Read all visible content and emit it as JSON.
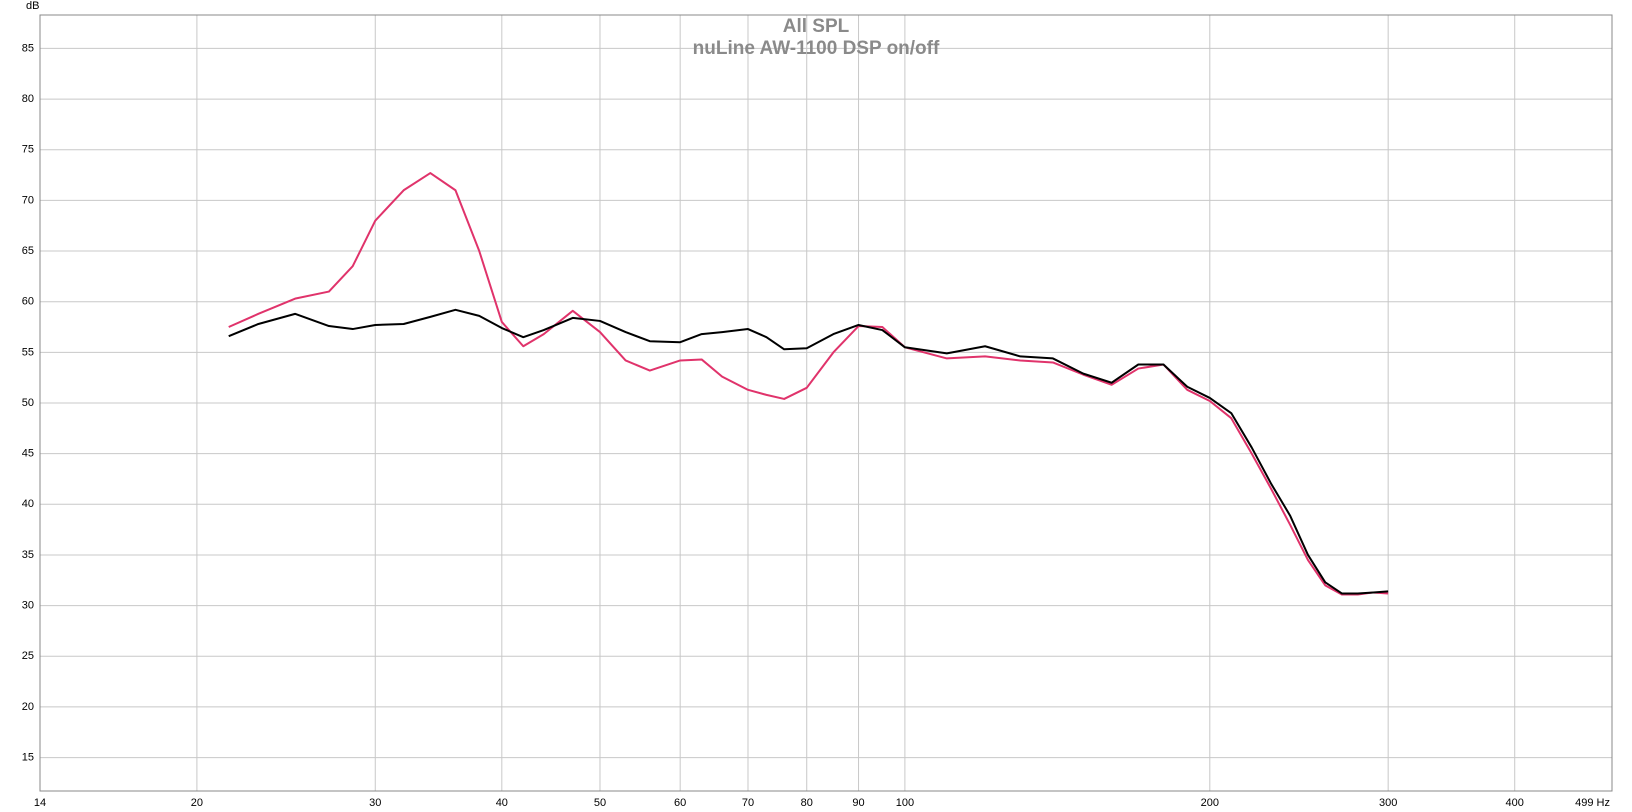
{
  "chart_data": {
    "type": "line",
    "title": "All SPL",
    "subtitle": "nuLine AW-1100 DSP on/off",
    "y_label": "dB",
    "x_scale": "log",
    "grid": true,
    "x": [
      21.5,
      23,
      25,
      27,
      28.5,
      30,
      32,
      34,
      36,
      38,
      40,
      42,
      44,
      47,
      50,
      53,
      56,
      60,
      63,
      66,
      70,
      73,
      76,
      80,
      85,
      90,
      95,
      100,
      110,
      120,
      130,
      140,
      150,
      160,
      170,
      180,
      190,
      200,
      210,
      220,
      230,
      240,
      250,
      260,
      270,
      280,
      290,
      300
    ],
    "series": [
      {
        "color": "#e0336b",
        "values": [
          57.5,
          58.8,
          60.3,
          61,
          63.5,
          68,
          71,
          72.7,
          71,
          65,
          58,
          55.6,
          56.8,
          59.1,
          57,
          54.2,
          53.2,
          54.2,
          54.3,
          52.6,
          51.3,
          50.8,
          50.4,
          51.5,
          55,
          57.6,
          57.5,
          55.5,
          54.4,
          54.6,
          54.2,
          54,
          52.8,
          51.8,
          53.4,
          53.8,
          51.3,
          50.2,
          48.5,
          45,
          41.5,
          38,
          34.5,
          32,
          31.1,
          31.1,
          31.3,
          31.2
        ]
      },
      {
        "color": "#000000",
        "values": [
          56.6,
          57.8,
          58.8,
          57.6,
          57.3,
          57.7,
          57.8,
          58.5,
          59.2,
          58.6,
          57.4,
          56.5,
          57.2,
          58.4,
          58.1,
          57,
          56.1,
          56,
          56.8,
          57,
          57.3,
          56.5,
          55.3,
          55.4,
          56.8,
          57.7,
          57.2,
          55.5,
          54.9,
          55.6,
          54.6,
          54.4,
          52.9,
          52,
          53.8,
          53.8,
          51.6,
          50.5,
          49,
          45.6,
          42,
          38.9,
          35,
          32.3,
          31.2,
          31.2,
          31.3,
          31.4
        ]
      }
    ],
    "xlim": [
      14,
      499
    ],
    "xticks": [
      14,
      20,
      30,
      40,
      50,
      60,
      70,
      80,
      90,
      100,
      200,
      300,
      400,
      {
        "value": 499,
        "label": "499 Hz"
      }
    ],
    "ylim": [
      11.7,
      88.3
    ],
    "yticks": [
      15,
      20,
      25,
      30,
      35,
      40,
      45,
      50,
      55,
      60,
      65,
      70,
      75,
      80,
      85
    ]
  }
}
